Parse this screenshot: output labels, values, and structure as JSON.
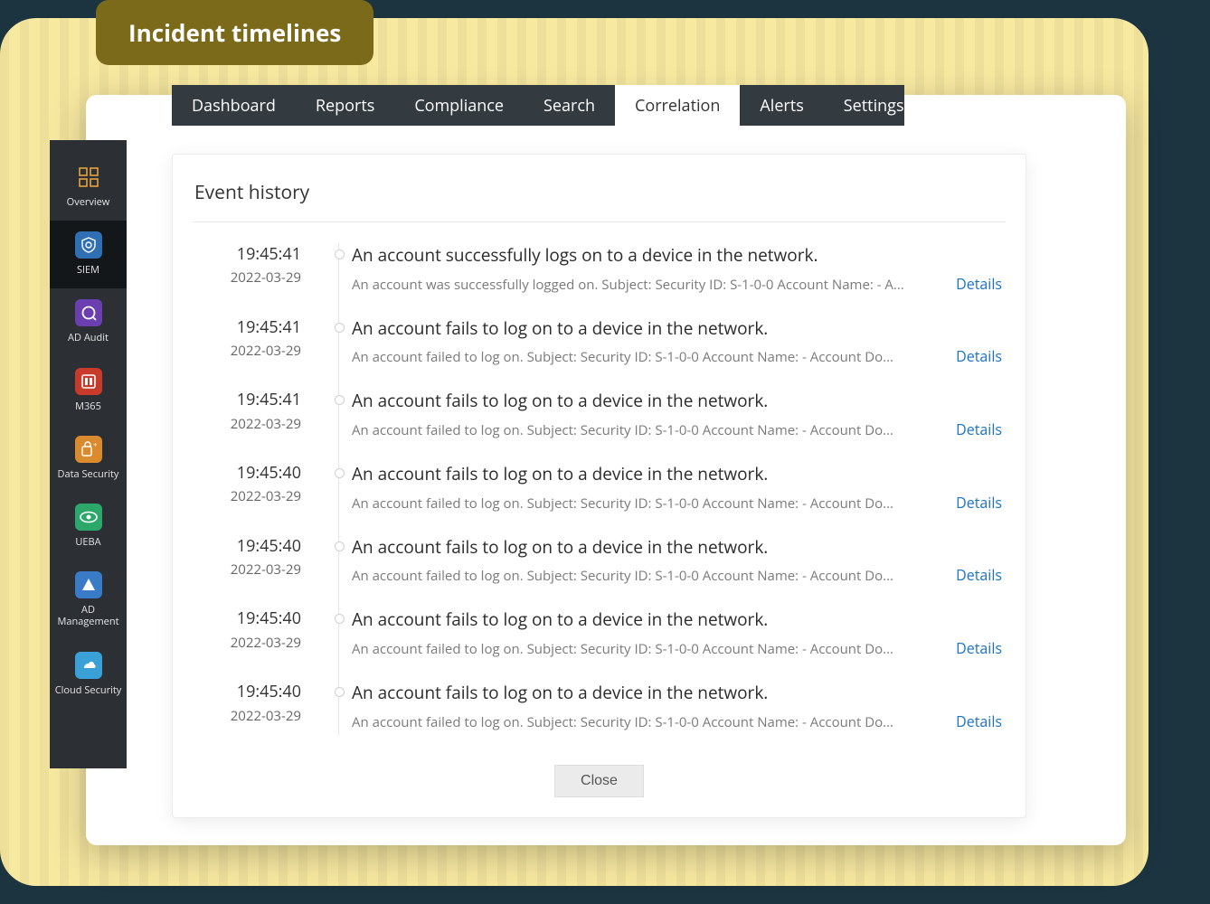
{
  "badge": {
    "label": "Incident timelines"
  },
  "colors": {
    "page_bg": "#1c3440",
    "yellow_card": "#f8e9a1",
    "badge_bg": "#7a6a1a",
    "badge_fg": "#ffffff",
    "tabs_bg": "#333a40",
    "tab_fg": "#ffffff",
    "tab_active_bg": "#ffffff",
    "tab_active_fg": "#333333",
    "sidebar_bg": "#2c2f33",
    "sidebar_active_bg": "#14171a",
    "link": "#1b73c6",
    "muted": "#7a7a7a"
  },
  "sidebar": {
    "items": [
      {
        "label": "Overview",
        "active": false,
        "icon_bg": "transparent",
        "icon_fg": "#e7a43b"
      },
      {
        "label": "SIEM",
        "active": true,
        "icon_bg": "#2f6fb3",
        "icon_fg": "#ffffff"
      },
      {
        "label": "AD Audit",
        "active": false,
        "icon_bg": "#6b3fb0",
        "icon_fg": "#ffffff"
      },
      {
        "label": "M365",
        "active": false,
        "icon_bg": "#c83a2a",
        "icon_fg": "#ffffff"
      },
      {
        "label": "Data Security",
        "active": false,
        "icon_bg": "#d98b2e",
        "icon_fg": "#ffffff"
      },
      {
        "label": "UEBA",
        "active": false,
        "icon_bg": "#2aa86a",
        "icon_fg": "#ffffff"
      },
      {
        "label": "AD Management",
        "active": false,
        "icon_bg": "#3a7bc8",
        "icon_fg": "#ffffff"
      },
      {
        "label": "Cloud Security",
        "active": false,
        "icon_bg": "#3aa0d8",
        "icon_fg": "#ffffff"
      }
    ]
  },
  "tabs": {
    "items": [
      {
        "label": "Dashboard",
        "active": false
      },
      {
        "label": "Reports",
        "active": false
      },
      {
        "label": "Compliance",
        "active": false
      },
      {
        "label": "Search",
        "active": false
      },
      {
        "label": "Correlation",
        "active": true
      },
      {
        "label": "Alerts",
        "active": false
      },
      {
        "label": "Settings",
        "active": false
      }
    ]
  },
  "panel": {
    "title": "Event history",
    "details_label": "Details",
    "close_label": "Close",
    "events": [
      {
        "time": "19:45:41",
        "date": "2022-03-29",
        "title": "An account successfully logs on to a device in the network.",
        "desc": "An account was successfully logged on. Subject: Security ID: S-1-0-0 Account Name: - A..."
      },
      {
        "time": "19:45:41",
        "date": "2022-03-29",
        "title": "An account fails to log on to a device in the network.",
        "desc": "An account failed to log on. Subject: Security ID: S-1-0-0 Account Name: - Account Do..."
      },
      {
        "time": "19:45:41",
        "date": "2022-03-29",
        "title": "An account fails to log on to a device in the network.",
        "desc": "An account failed to log on. Subject: Security ID: S-1-0-0 Account Name: - Account Do..."
      },
      {
        "time": "19:45:40",
        "date": "2022-03-29",
        "title": "An account fails to log on to a device in the network.",
        "desc": "An account failed to log on. Subject: Security ID: S-1-0-0 Account Name: - Account Do..."
      },
      {
        "time": "19:45:40",
        "date": "2022-03-29",
        "title": "An account fails to log on to a device in the network.",
        "desc": "An account failed to log on. Subject: Security ID: S-1-0-0 Account Name: - Account Do..."
      },
      {
        "time": "19:45:40",
        "date": "2022-03-29",
        "title": "An account fails to log on to a device in the network.",
        "desc": "An account failed to log on. Subject: Security ID: S-1-0-0 Account Name: - Account Do..."
      },
      {
        "time": "19:45:40",
        "date": "2022-03-29",
        "title": "An account fails to log on to a device in the network.",
        "desc": "An account failed to log on. Subject: Security ID: S-1-0-0 Account Name: - Account Do..."
      }
    ]
  }
}
